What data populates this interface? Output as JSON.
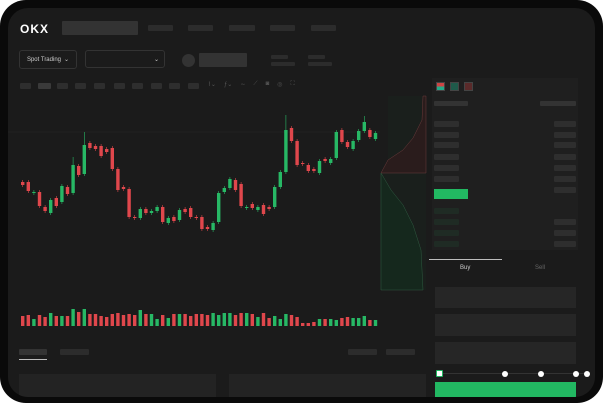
{
  "header": {
    "logo": "OKX",
    "nav_items": 5
  },
  "toolbar": {
    "spot_trading_label": "Spot Trading",
    "pair_dropdown": ""
  },
  "trade": {
    "tabs": [
      {
        "label": "Buy",
        "active": true
      },
      {
        "label": "Sell",
        "active": false
      }
    ],
    "slider_percent": 0
  },
  "colors": {
    "up": "#27b865",
    "down": "#e0474c",
    "background": "#1b1b1b",
    "accent": "#22b862"
  },
  "icons": [
    "chevron-down-icon",
    "candle-type-icon",
    "indicator-icon",
    "draw-icon",
    "ruler-icon",
    "camera-icon",
    "settings-icon",
    "fullscreen-icon",
    "orderbook-both-icon",
    "orderbook-bids-icon",
    "orderbook-asks-icon"
  ],
  "chart_data": {
    "type": "candlestick",
    "candles": [
      [
        68,
        65
      ],
      [
        68,
        59
      ],
      [
        57,
        58
      ],
      [
        58,
        44
      ],
      [
        43,
        39
      ],
      [
        37,
        50
      ],
      [
        52,
        44
      ],
      [
        48,
        64
      ],
      [
        63,
        56
      ],
      [
        57,
        85
      ],
      [
        84,
        75
      ],
      [
        76,
        105
      ],
      [
        107,
        102
      ],
      [
        104,
        101
      ],
      [
        104,
        94
      ],
      [
        101,
        98
      ],
      [
        102,
        81
      ],
      [
        81,
        60
      ],
      [
        63,
        61
      ],
      [
        61,
        33
      ],
      [
        33,
        32
      ],
      [
        32,
        41
      ],
      [
        41,
        37
      ],
      [
        37,
        39
      ],
      [
        39,
        43
      ],
      [
        43,
        28
      ],
      [
        27,
        32
      ],
      [
        33,
        29
      ],
      [
        30,
        40
      ],
      [
        41,
        38
      ],
      [
        42,
        33
      ],
      [
        33,
        32
      ],
      [
        33,
        21
      ],
      [
        23,
        21
      ],
      [
        20,
        27
      ],
      [
        28,
        57
      ],
      [
        58,
        62
      ],
      [
        62,
        71
      ],
      [
        70,
        60
      ],
      [
        66,
        44
      ],
      [
        42,
        43
      ],
      [
        46,
        42
      ],
      [
        40,
        43
      ],
      [
        45,
        36
      ],
      [
        43,
        41
      ],
      [
        43,
        63
      ],
      [
        63,
        78
      ],
      [
        78,
        120
      ],
      [
        122,
        109
      ],
      [
        109,
        85
      ],
      [
        87,
        86
      ],
      [
        85,
        79
      ],
      [
        81,
        79
      ],
      [
        77,
        89
      ],
      [
        91,
        89
      ],
      [
        87,
        91
      ],
      [
        92,
        118
      ],
      [
        120,
        108
      ],
      [
        108,
        103
      ],
      [
        101,
        109
      ],
      [
        110,
        119
      ],
      [
        119,
        128
      ],
      [
        120,
        113
      ],
      [
        111,
        117
      ]
    ],
    "long_wick_highs": {
      "9": 93,
      "11": 118,
      "47": 135,
      "61": 134
    },
    "volumes": [
      10,
      11,
      7,
      11,
      9,
      13,
      10,
      10,
      10,
      17,
      14,
      17,
      12,
      12,
      10,
      9,
      12,
      13,
      11,
      12,
      11,
      16,
      12,
      12,
      7,
      11,
      8,
      12,
      12,
      12,
      10,
      12,
      12,
      11,
      13,
      11,
      13,
      13,
      11,
      13,
      13,
      12,
      9,
      13,
      8,
      10,
      7,
      12,
      11,
      9,
      3,
      3,
      4,
      7,
      7,
      7,
      6,
      8,
      9,
      8,
      8,
      10,
      6,
      6
    ]
  }
}
